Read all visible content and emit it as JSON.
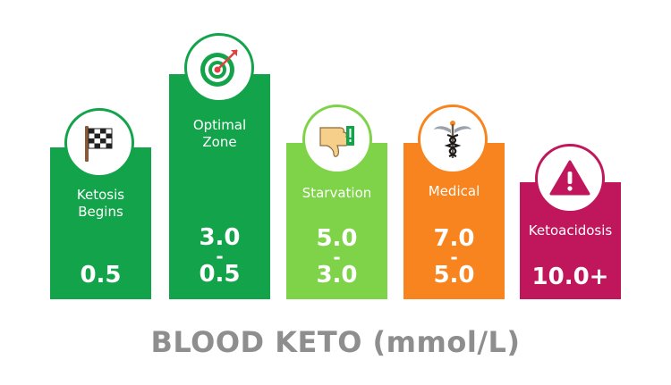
{
  "chart_data": {
    "type": "bar",
    "title": "BLOOD KETO (mmol/L)",
    "categories": [
      "Ketosis Begins",
      "Optimal Zone",
      "Starvation",
      "Medical",
      "Ketoacidosis"
    ],
    "bars": [
      {
        "label_lines": [
          "Ketosis",
          "Begins"
        ],
        "value_lines": [
          "0.5"
        ],
        "color": "#13a34a",
        "icon": "checkered-flag-icon"
      },
      {
        "label_lines": [
          "Optimal",
          "Zone"
        ],
        "value_lines": [
          "3.0",
          "-",
          "0.5"
        ],
        "color": "#13a34a",
        "icon": "bullseye-target-icon"
      },
      {
        "label_lines": [
          "Starvation"
        ],
        "value_lines": [
          "5.0",
          "-",
          "3.0"
        ],
        "color": "#7ed348",
        "icon": "thumbs-down-icon"
      },
      {
        "label_lines": [
          "Medical"
        ],
        "value_lines": [
          "7.0",
          "-",
          "5.0"
        ],
        "color": "#f7841f",
        "icon": "caduceus-icon"
      },
      {
        "label_lines": [
          "Ketoacidosis"
        ],
        "value_lines": [
          "10.0+"
        ],
        "color": "#c0175c",
        "icon": "warning-icon"
      }
    ]
  }
}
